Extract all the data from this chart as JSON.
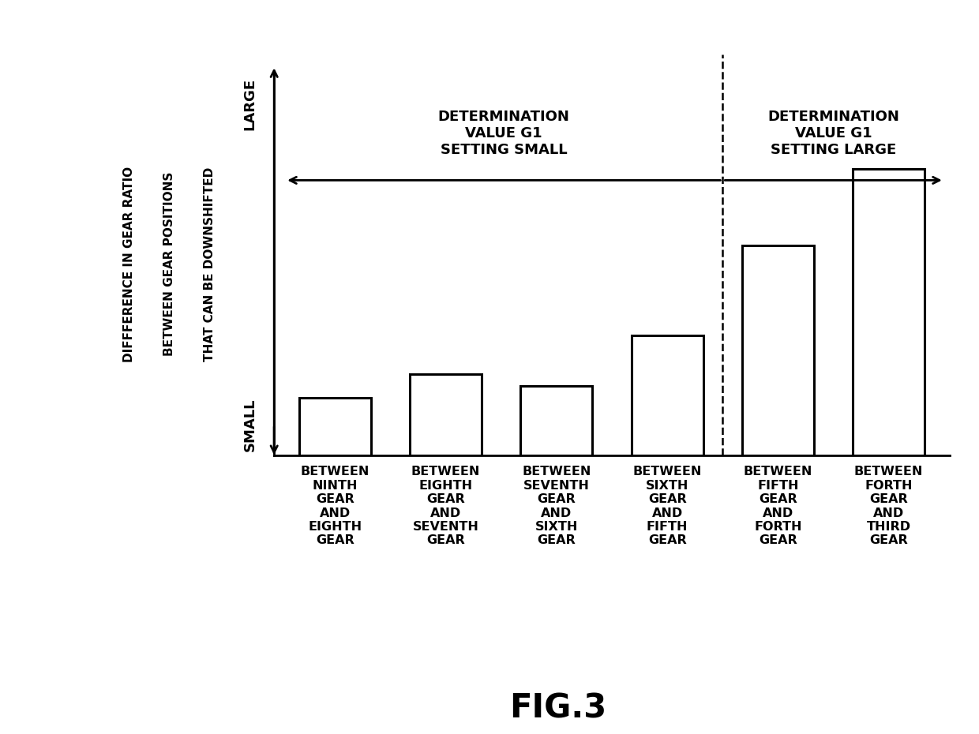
{
  "categories": [
    "BETWEEN\nNINTH\nGEAR\nAND\nEIGHTH\nGEAR",
    "BETWEEN\nEIGHTH\nGEAR\nAND\nSEVENTH\nGEAR",
    "BETWEEN\nSEVENTH\nGEAR\nAND\nSIXTH\nGEAR",
    "BETWEEN\nSIXTH\nGEAR\nAND\nFIFTH\nGEAR",
    "BETWEEN\nFIFTH\nGEAR\nAND\nFORTH\nGEAR",
    "BETWEEN\nFORTH\nGEAR\nAND\nTHIRD\nGEAR"
  ],
  "values": [
    0.12,
    0.17,
    0.145,
    0.25,
    0.44,
    0.6
  ],
  "bar_color": "#ffffff",
  "bar_edgecolor": "#000000",
  "bar_linewidth": 2.2,
  "ylabel_line1": "DIFFFERENCE IN GEAR RATIO",
  "ylabel_line2": "BETWEEN GEAR POSITIONS",
  "ylabel_line3": "THAT CAN BE DOWNSHIFTED",
  "ylabel_large": "LARGE",
  "ylabel_small": "SMALL",
  "dashed_line_x": 4.5,
  "annotation_small_text": "DETERMINATION\nVALUE G1\nSETTING SMALL",
  "annotation_large_text": "DETERMINATION\nVALUE G1\nSETTING LARGE",
  "fig_label": "FIG.3",
  "background_color": "#ffffff",
  "ylim": [
    0,
    0.8
  ],
  "bar_width": 0.65,
  "spine_linewidth": 2.0
}
